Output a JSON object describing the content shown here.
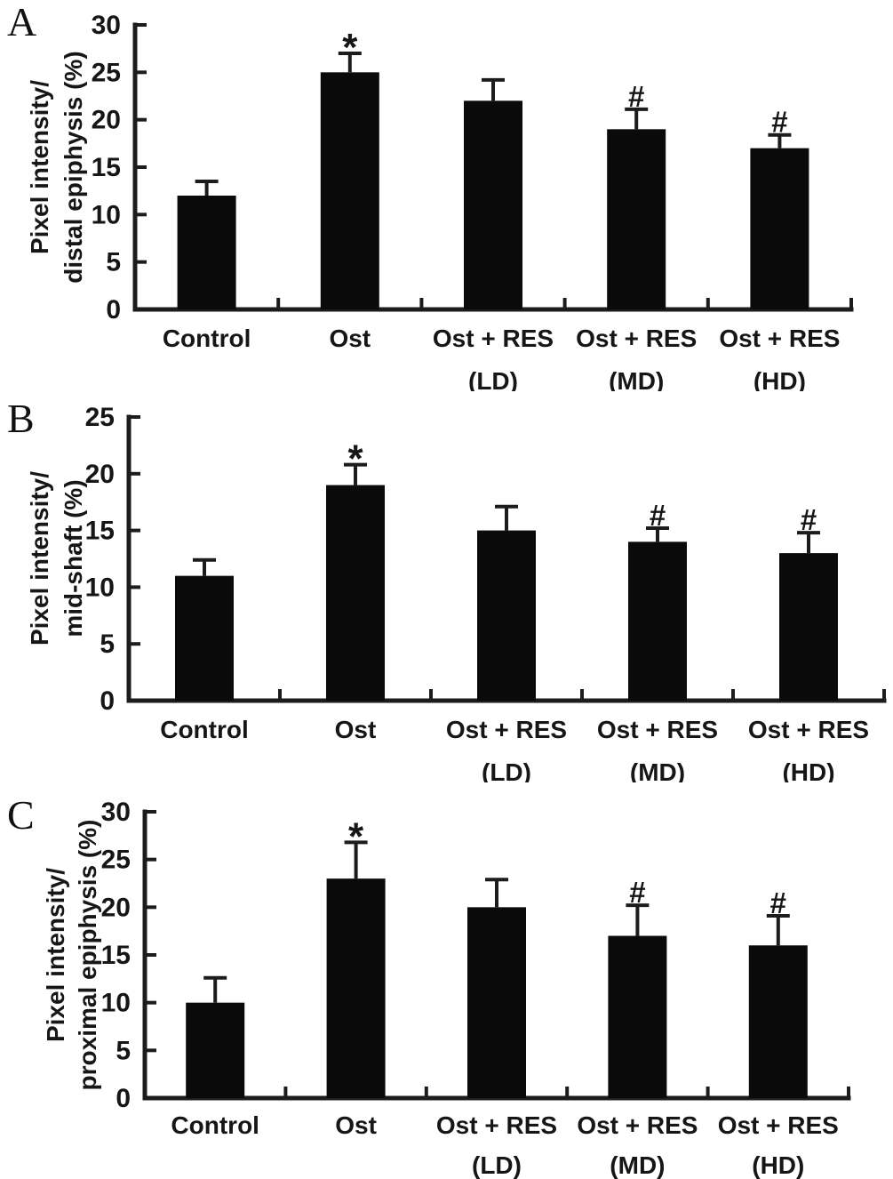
{
  "colors": {
    "ink": "#1c1c1c",
    "bar": "#0a0a0a",
    "background": "#ffffff"
  },
  "chart_data": [
    {
      "type": "bar",
      "panel": "A",
      "title": "",
      "xlabel": "",
      "ylabel": "Pixel intensity/ distal epiphysis (%)",
      "ylabel_lines": [
        "Pixel intensity/",
        "distal epiphysis (%)"
      ],
      "ylim": [
        0,
        30
      ],
      "yticks": [
        0,
        5,
        10,
        15,
        20,
        25,
        30
      ],
      "grid": false,
      "legend": "none",
      "categories": [
        [
          "Control"
        ],
        [
          "Ost"
        ],
        [
          "Ost + RES",
          "(LD)"
        ],
        [
          "Ost + RES",
          "(MD)"
        ],
        [
          "Ost + RES",
          "(HD)"
        ]
      ],
      "values": [
        12,
        25,
        22,
        19,
        17
      ],
      "errors": [
        1.5,
        2.0,
        2.2,
        2.1,
        1.4
      ],
      "markers": [
        "",
        "*",
        "",
        "#",
        "#"
      ]
    },
    {
      "type": "bar",
      "panel": "B",
      "title": "",
      "xlabel": "",
      "ylabel": "Pixel intensity/ mid-shaft (%)",
      "ylabel_lines": [
        "Pixel intensity/",
        "mid-shaft (%)"
      ],
      "ylim": [
        0,
        25
      ],
      "yticks": [
        0,
        5,
        10,
        15,
        20,
        25
      ],
      "grid": false,
      "legend": "none",
      "categories": [
        [
          "Control"
        ],
        [
          "Ost"
        ],
        [
          "Ost + RES",
          "(LD)"
        ],
        [
          "Ost + RES",
          "(MD)"
        ],
        [
          "Ost + RES",
          "(HD)"
        ]
      ],
      "values": [
        11,
        19,
        15,
        14,
        13
      ],
      "errors": [
        1.4,
        1.8,
        2.1,
        1.2,
        1.8
      ],
      "markers": [
        "",
        "*",
        "",
        "#",
        "#"
      ]
    },
    {
      "type": "bar",
      "panel": "C",
      "title": "",
      "xlabel": "",
      "ylabel": "Pixel intensity/ proximal epiphysis (%)",
      "ylabel_lines": [
        "Pixel intensity/",
        "proximal epiphysis (%)"
      ],
      "ylim": [
        0,
        30
      ],
      "yticks": [
        0,
        5,
        10,
        15,
        20,
        25,
        30
      ],
      "grid": false,
      "legend": "none",
      "categories": [
        [
          "Control"
        ],
        [
          "Ost"
        ],
        [
          "Ost + RES",
          "(LD)"
        ],
        [
          "Ost + RES",
          "(MD)"
        ],
        [
          "Ost + RES",
          "(HD)"
        ]
      ],
      "values": [
        10,
        23,
        20,
        17,
        16
      ],
      "errors": [
        2.6,
        3.8,
        2.9,
        3.2,
        3.1
      ],
      "markers": [
        "",
        "*",
        "",
        "#",
        "#"
      ]
    }
  ]
}
